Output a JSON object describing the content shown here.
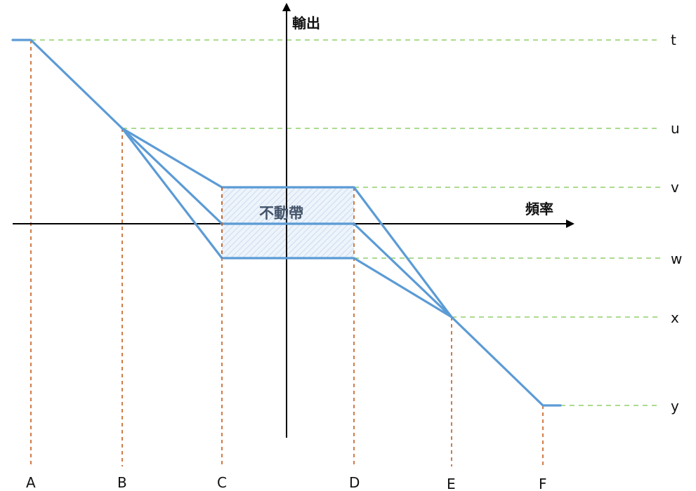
{
  "axes": {
    "y_title": "輸出",
    "x_title": "頻率"
  },
  "deadband_label": "不動帶",
  "level_labels": [
    "t",
    "u",
    "v",
    "w",
    "x",
    "y"
  ],
  "frequency_labels": [
    "A",
    "B",
    "C",
    "D",
    "E",
    "F"
  ],
  "colors": {
    "curve": "#5b9bd5",
    "level_guides": "#8fcf6a",
    "frequency_guides": "#c55a1c",
    "deadband_fill": "#e3edf8"
  }
}
